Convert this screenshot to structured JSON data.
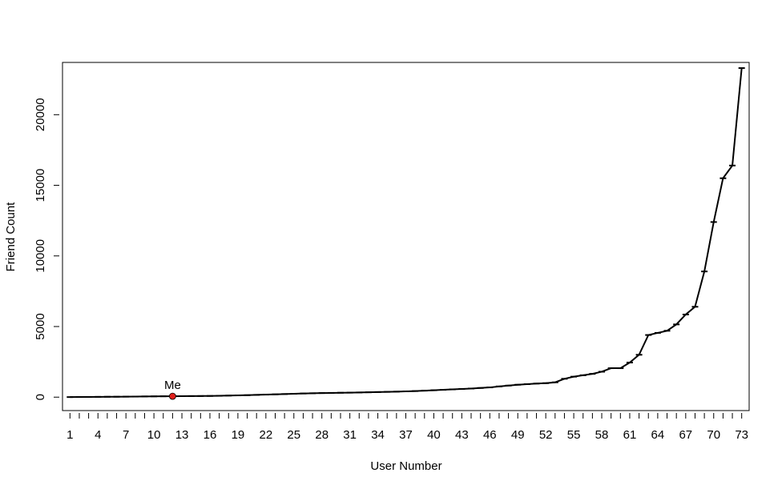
{
  "chart_data": {
    "type": "line",
    "title": "",
    "xlabel": "User Number",
    "ylabel": "Friend Count",
    "x": [
      1,
      2,
      3,
      4,
      5,
      6,
      7,
      8,
      9,
      10,
      11,
      12,
      13,
      14,
      15,
      16,
      17,
      18,
      19,
      20,
      21,
      22,
      23,
      24,
      25,
      26,
      27,
      28,
      29,
      30,
      31,
      32,
      33,
      34,
      35,
      36,
      37,
      38,
      39,
      40,
      41,
      42,
      43,
      44,
      45,
      46,
      47,
      48,
      49,
      50,
      51,
      52,
      53,
      54,
      55,
      56,
      57,
      58,
      59,
      60,
      61,
      62,
      63,
      64,
      65,
      66,
      67,
      68,
      69,
      70,
      71,
      72,
      73
    ],
    "values": [
      5,
      10,
      15,
      20,
      25,
      30,
      35,
      40,
      50,
      55,
      60,
      65,
      70,
      75,
      80,
      85,
      95,
      110,
      125,
      140,
      160,
      180,
      200,
      220,
      240,
      260,
      275,
      290,
      300,
      310,
      320,
      330,
      345,
      360,
      375,
      390,
      410,
      430,
      460,
      490,
      520,
      550,
      580,
      610,
      650,
      690,
      760,
      820,
      880,
      920,
      960,
      990,
      1050,
      1300,
      1450,
      1550,
      1650,
      1800,
      2050,
      2050,
      2450,
      3000,
      4400,
      4550,
      4700,
      5150,
      5850,
      6400,
      8900,
      12400,
      15500,
      16400,
      23300
    ],
    "xticks": [
      "1",
      "4",
      "7",
      "10",
      "13",
      "16",
      "19",
      "22",
      "25",
      "28",
      "31",
      "34",
      "37",
      "40",
      "43",
      "46",
      "49",
      "52",
      "55",
      "58",
      "61",
      "64",
      "67",
      "70",
      "73"
    ],
    "yticks": [
      "0",
      "5000",
      "10000",
      "15000",
      "20000"
    ],
    "xlim": [
      0.2,
      73.8
    ],
    "ylim": [
      -950,
      23700
    ],
    "annotation": {
      "label": "Me",
      "x": 12,
      "y": 65,
      "color": "#e0201c"
    },
    "line_color": "#000000",
    "grid": false,
    "legend": "none"
  }
}
